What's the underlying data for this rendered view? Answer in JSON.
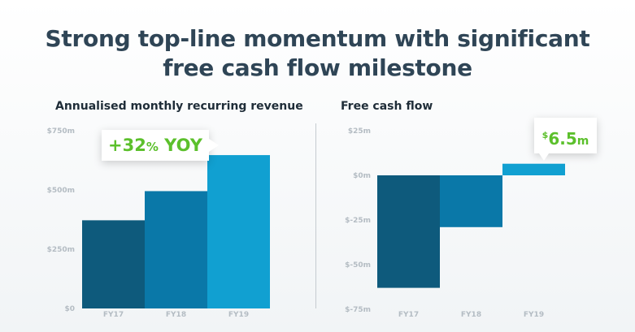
{
  "title": {
    "line1": "Strong top-line momentum with significant",
    "line2": "free cash flow milestone"
  },
  "colors": {
    "title": "#2f4556",
    "bar_dark": "#0e5a7c",
    "bar_mid": "#0a78a8",
    "bar_light": "#11a0d1",
    "tick": "#b4bcc3",
    "callout_text": "#5cc02c"
  },
  "chart_data": [
    {
      "type": "bar",
      "title": "Annualised monthly recurring revenue",
      "categories": [
        "FY17",
        "FY18",
        "FY19"
      ],
      "values": [
        372,
        495,
        647
      ],
      "yticks": [
        {
          "value": 0,
          "label": "$0"
        },
        {
          "value": 250,
          "label": "$250m"
        },
        {
          "value": 500,
          "label": "$500m"
        },
        {
          "value": 750,
          "label": "$750m"
        }
      ],
      "ylim": [
        0,
        750
      ],
      "grid": false,
      "annotation": {
        "value": "+32",
        "percent": "%",
        "suffix": " YOY"
      }
    },
    {
      "type": "bar",
      "title": "Free cash flow",
      "categories": [
        "FY17",
        "FY18",
        "FY19"
      ],
      "values": [
        -63,
        -29,
        6.5
      ],
      "yticks": [
        {
          "value": 25,
          "label": "$25m"
        },
        {
          "value": 0,
          "label": "$0m"
        },
        {
          "value": -25,
          "label": "$-25m"
        },
        {
          "value": -50,
          "label": "$-50m"
        },
        {
          "value": -75,
          "label": "$-75m"
        }
      ],
      "ylim": [
        -75,
        25
      ],
      "grid": false,
      "annotation": {
        "currency": "$",
        "value": "6.5",
        "unit": "m"
      }
    }
  ]
}
